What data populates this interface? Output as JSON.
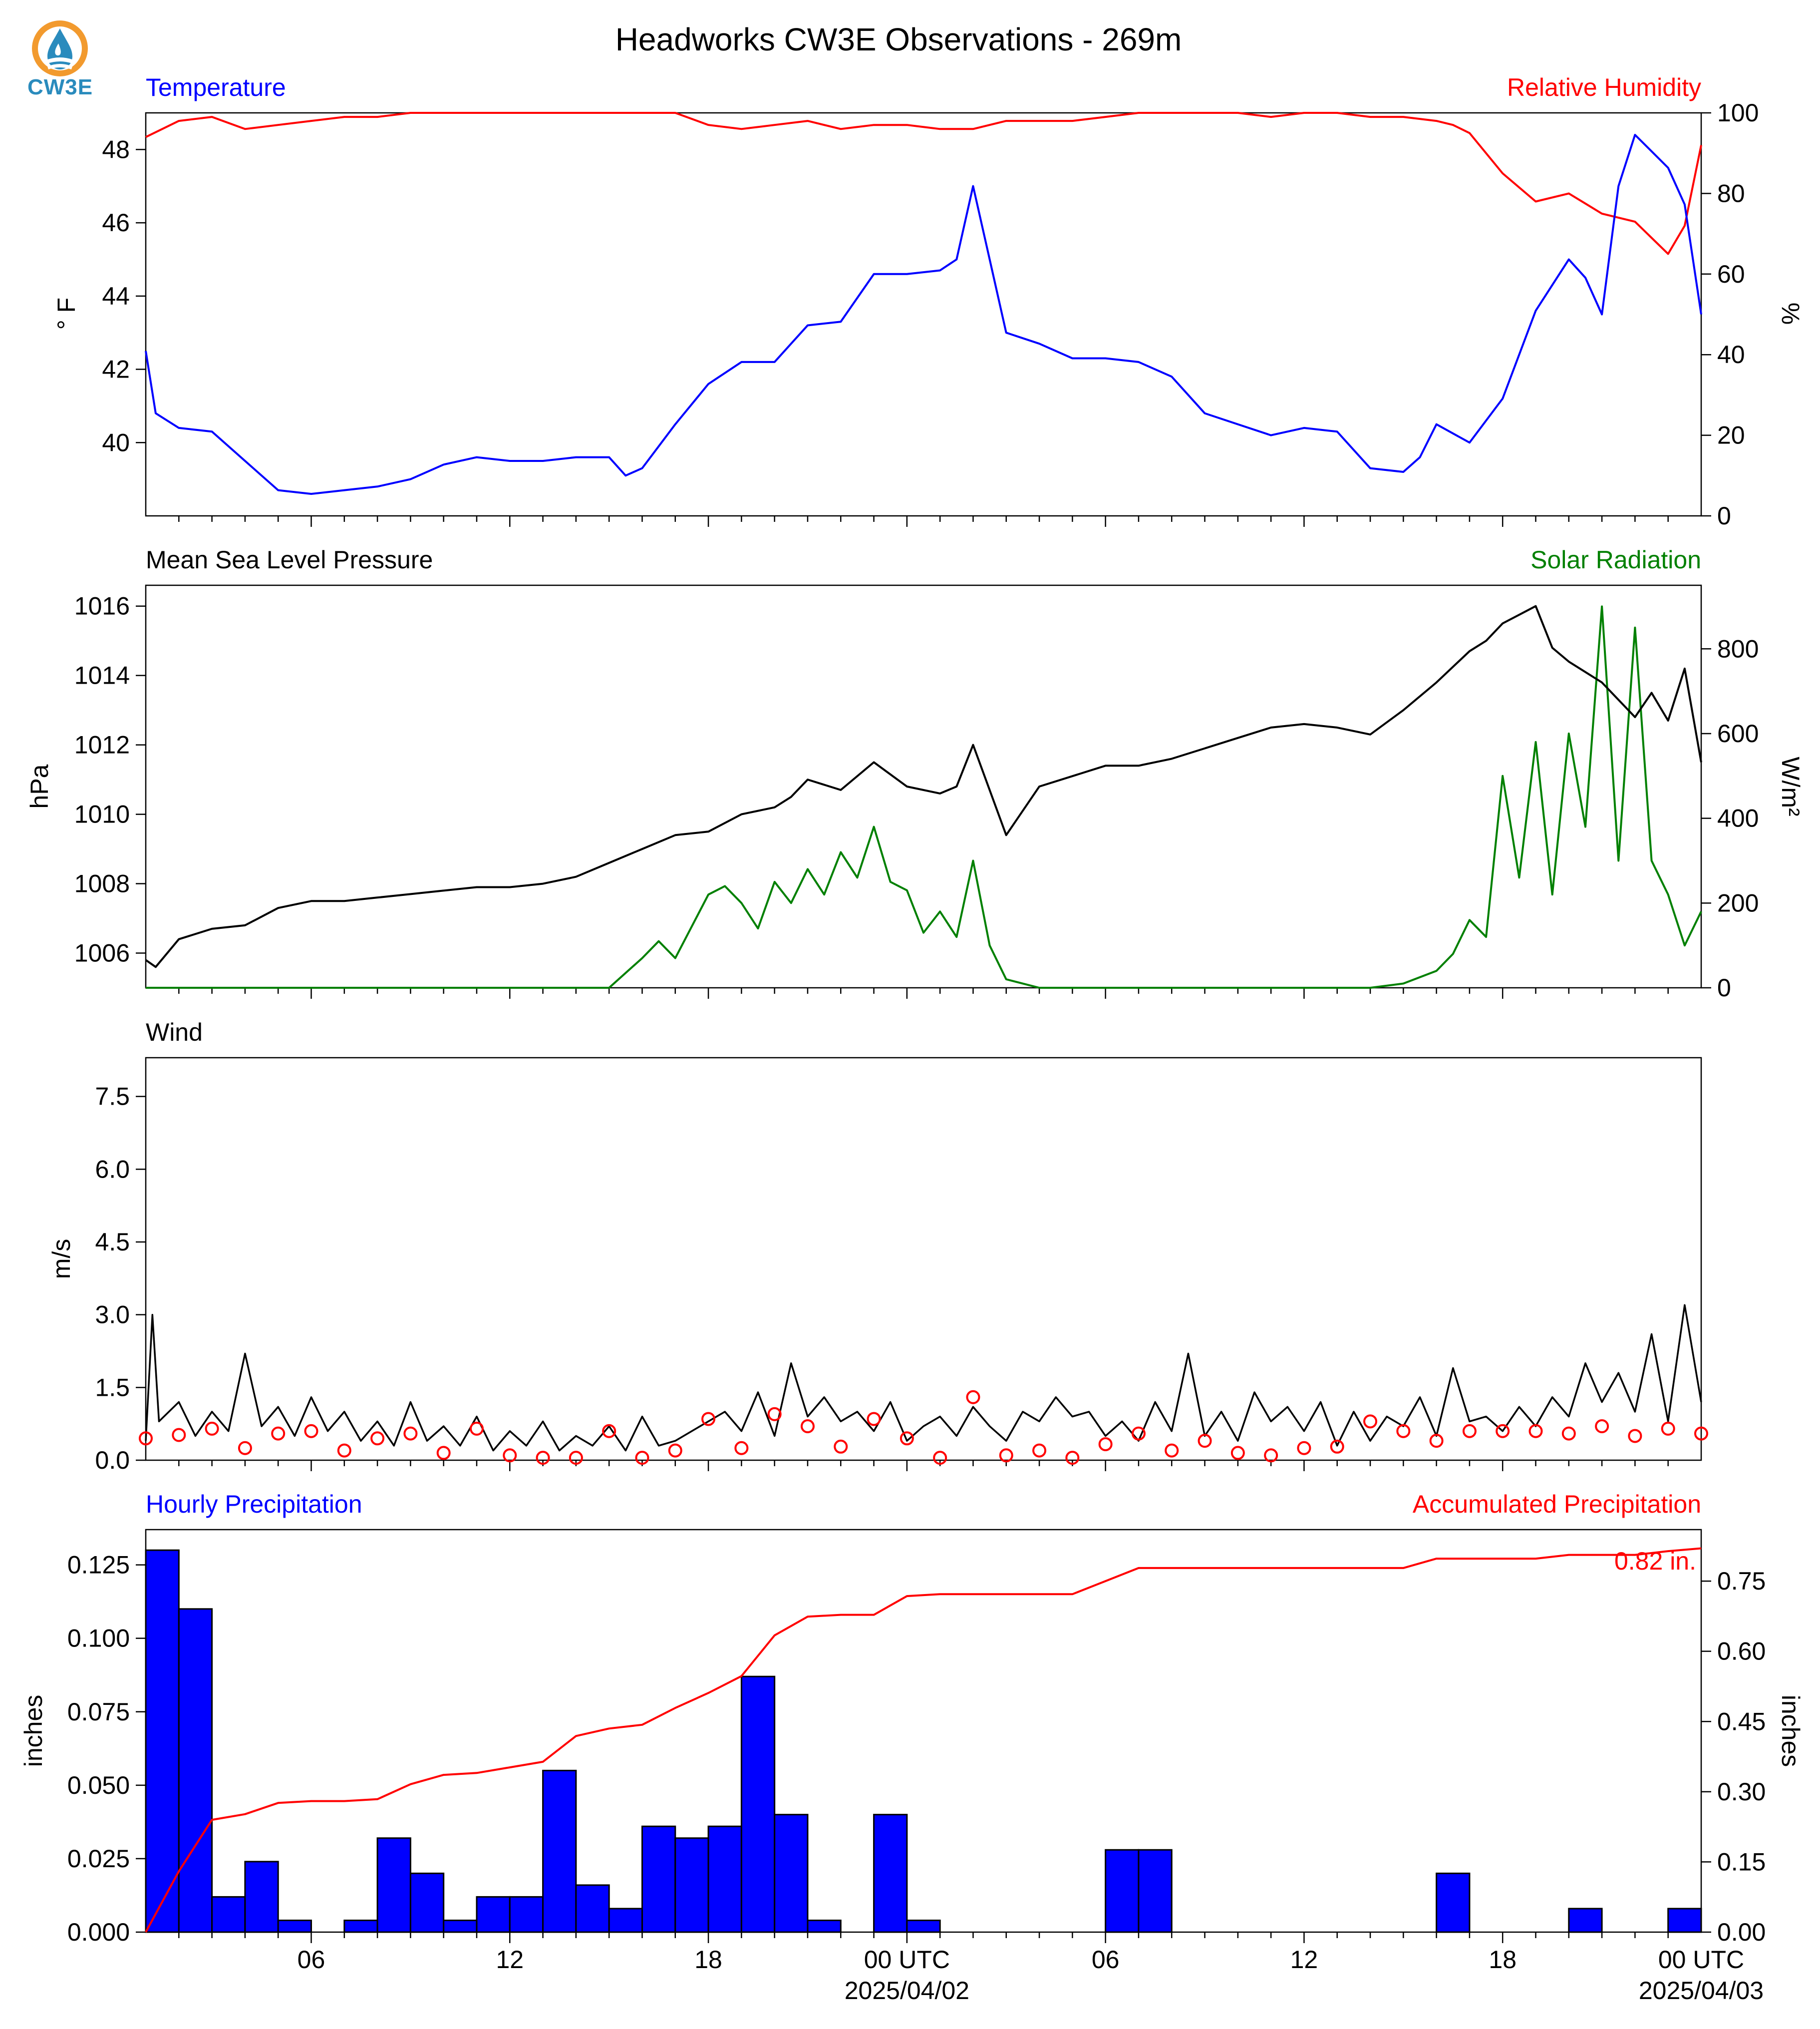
{
  "title": "Headworks CW3E Observations - 269m",
  "logo": {
    "text": "CW3E",
    "colors": {
      "ring": "#f29a2e",
      "drop": "#2a8bbd"
    }
  },
  "colors": {
    "blue": "#0000ff",
    "red": "#ff0000",
    "green": "#008000",
    "black": "#000000"
  },
  "x_axis": {
    "ticks": [
      "06",
      "12",
      "18",
      "00 UTC",
      "06",
      "12",
      "18",
      "00 UTC"
    ],
    "dates": [
      "2025/04/02",
      "2025/04/03"
    ]
  },
  "chart_data": [
    {
      "type": "line",
      "panel": "temperature-humidity",
      "left_label": "Temperature",
      "right_label": "Relative Humidity",
      "ylabel_left": "° F",
      "ylabel_right": "%",
      "ylim_left": [
        38.0,
        49.0
      ],
      "ylim_right": [
        0,
        100
      ],
      "yticks_left": [
        40,
        42,
        44,
        46,
        48
      ],
      "yticks_right": [
        0,
        20,
        40,
        60,
        80,
        100
      ],
      "x_unit": "hours since 00 UTC 2025/04/01",
      "series": [
        {
          "name": "Temperature",
          "color": "#0000ff",
          "axis": "left",
          "x": [
            0,
            0.3,
            1,
            2,
            3,
            4,
            5,
            6,
            7,
            8,
            9,
            10,
            11,
            12,
            13,
            14,
            14.5,
            15,
            16,
            17,
            18,
            19,
            19.5,
            20,
            21,
            22,
            23,
            24,
            24.5,
            25,
            25.5,
            26,
            27,
            28,
            29,
            30,
            31,
            32,
            33,
            34,
            35,
            36,
            37,
            38,
            38.5,
            39,
            40,
            41,
            42,
            43,
            43.5,
            44,
            44.5,
            45,
            46,
            46.5,
            47
          ],
          "y": [
            42.5,
            40.8,
            40.4,
            40.3,
            39.5,
            38.7,
            38.6,
            38.7,
            38.8,
            39.0,
            39.4,
            39.6,
            39.5,
            39.5,
            39.6,
            39.6,
            39.1,
            39.3,
            40.5,
            41.6,
            42.2,
            42.2,
            42.7,
            43.2,
            43.3,
            44.6,
            44.6,
            44.7,
            45.0,
            47.0,
            45.0,
            43.0,
            42.7,
            42.3,
            42.3,
            42.2,
            41.8,
            40.8,
            40.5,
            40.2,
            40.4,
            40.3,
            39.3,
            39.2,
            39.6,
            40.5,
            40.0,
            41.2,
            43.6,
            45.0,
            44.5,
            43.5,
            47.0,
            48.4,
            47.5,
            46.5,
            43.5
          ]
        },
        {
          "name": "Relative Humidity",
          "color": "#ff0000",
          "axis": "right",
          "x": [
            0,
            1,
            2,
            3,
            4,
            5,
            6,
            7,
            8,
            9,
            10,
            11,
            12,
            13,
            14,
            15,
            16,
            17,
            18,
            19,
            20,
            21,
            22,
            23,
            24,
            25,
            26,
            27,
            28,
            29,
            30,
            31,
            32,
            33,
            34,
            35,
            36,
            37,
            38,
            39,
            39.5,
            40,
            41,
            42,
            43,
            44,
            45,
            46,
            46.5,
            47
          ],
          "y": [
            94,
            98,
            99,
            96,
            97,
            98,
            99,
            99,
            100,
            100,
            100,
            100,
            100,
            100,
            100,
            100,
            100,
            97,
            96,
            97,
            98,
            96,
            97,
            97,
            96,
            96,
            98,
            98,
            98,
            99,
            100,
            100,
            100,
            100,
            99,
            100,
            100,
            99,
            99,
            98,
            97,
            95,
            85,
            78,
            80,
            75,
            73,
            65,
            72,
            92
          ]
        }
      ]
    },
    {
      "type": "line",
      "panel": "pressure-solar",
      "left_label": "Mean Sea Level Pressure",
      "right_label": "Solar Radiation",
      "ylabel_left": "hPa",
      "ylabel_right": "W/m²",
      "ylim_left": [
        1005.0,
        1016.6
      ],
      "ylim_right": [
        0,
        950
      ],
      "yticks_left": [
        1006,
        1008,
        1010,
        1012,
        1014,
        1016
      ],
      "yticks_right": [
        0,
        200,
        400,
        600,
        800
      ],
      "x_unit": "hours since 00 UTC 2025/04/01",
      "series": [
        {
          "name": "Mean Sea Level Pressure",
          "color": "#000000",
          "axis": "left",
          "x": [
            0,
            0.3,
            1,
            2,
            3,
            4,
            5,
            6,
            7,
            8,
            9,
            10,
            11,
            12,
            13,
            14,
            15,
            16,
            17,
            18,
            19,
            19.5,
            20,
            21,
            22,
            23,
            24,
            24.5,
            25,
            26,
            27,
            28,
            29,
            30,
            31,
            32,
            33,
            34,
            35,
            36,
            37,
            38,
            39,
            40,
            40.5,
            41,
            42,
            42.5,
            43,
            44,
            45,
            45.5,
            46,
            46.5,
            47
          ],
          "y": [
            1005.8,
            1005.6,
            1006.4,
            1006.7,
            1006.8,
            1007.3,
            1007.5,
            1007.5,
            1007.6,
            1007.7,
            1007.8,
            1007.9,
            1007.9,
            1008.0,
            1008.2,
            1008.6,
            1009.0,
            1009.4,
            1009.5,
            1010.0,
            1010.2,
            1010.5,
            1011.0,
            1010.7,
            1011.5,
            1010.8,
            1010.6,
            1010.8,
            1012.0,
            1009.4,
            1010.8,
            1011.1,
            1011.4,
            1011.4,
            1011.6,
            1011.9,
            1012.2,
            1012.5,
            1012.6,
            1012.5,
            1012.3,
            1013.0,
            1013.8,
            1014.7,
            1015.0,
            1015.5,
            1016.0,
            1014.8,
            1014.4,
            1013.8,
            1012.8,
            1013.5,
            1012.7,
            1014.2,
            1011.5
          ]
        },
        {
          "name": "Solar Radiation",
          "color": "#008000",
          "axis": "right",
          "x": [
            0,
            13,
            14,
            15,
            15.5,
            16,
            17,
            17.5,
            18,
            18.5,
            19,
            19.5,
            20,
            20.5,
            21,
            21.5,
            22,
            22.5,
            23,
            23.5,
            24,
            24.5,
            25,
            25.5,
            26,
            27,
            37,
            38,
            39,
            39.5,
            40,
            40.5,
            41,
            41.5,
            42,
            42.5,
            43,
            43.5,
            44,
            44.5,
            45,
            45.5,
            46,
            46.5,
            47
          ],
          "y": [
            0,
            0,
            0,
            70,
            110,
            70,
            220,
            240,
            200,
            140,
            250,
            200,
            280,
            220,
            320,
            260,
            380,
            250,
            230,
            130,
            180,
            120,
            300,
            100,
            20,
            0,
            0,
            10,
            40,
            80,
            160,
            120,
            500,
            260,
            580,
            220,
            600,
            380,
            900,
            300,
            850,
            300,
            220,
            100,
            180
          ]
        }
      ]
    },
    {
      "type": "line",
      "panel": "wind",
      "left_label": "Wind",
      "ylabel_left": "m/s",
      "ylim_left": [
        0,
        8.3
      ],
      "yticks_left": [
        0.0,
        1.5,
        3.0,
        4.5,
        6.0,
        7.5
      ],
      "x_unit": "hours since 00 UTC 2025/04/01",
      "series": [
        {
          "name": "Wind",
          "color": "#000000",
          "x": [
            0,
            0.2,
            0.4,
            1,
            1.5,
            2,
            2.5,
            3,
            3.5,
            4,
            4.5,
            5,
            5.5,
            6,
            6.5,
            7,
            7.5,
            8,
            8.5,
            9,
            9.5,
            10,
            10.5,
            11,
            11.5,
            12,
            12.5,
            13,
            13.5,
            14,
            14.5,
            15,
            15.5,
            16,
            16.5,
            17,
            17.5,
            18,
            18.5,
            19,
            19.5,
            20,
            20.5,
            21,
            21.5,
            22,
            22.5,
            23,
            23.5,
            24,
            24.5,
            25,
            25.5,
            26,
            26.5,
            27,
            27.5,
            28,
            28.5,
            29,
            29.5,
            30,
            30.5,
            31,
            31.5,
            32,
            32.5,
            33,
            33.5,
            34,
            34.5,
            35,
            35.5,
            36,
            36.5,
            37,
            37.5,
            38,
            38.5,
            39,
            39.5,
            40,
            40.5,
            41,
            41.5,
            42,
            42.5,
            43,
            43.5,
            44,
            44.5,
            45,
            45.5,
            46,
            46.5,
            47
          ],
          "y": [
            0.4,
            3.0,
            0.8,
            1.2,
            0.5,
            1.0,
            0.6,
            2.2,
            0.7,
            1.1,
            0.5,
            1.3,
            0.6,
            1.0,
            0.4,
            0.8,
            0.3,
            1.2,
            0.4,
            0.7,
            0.3,
            0.9,
            0.2,
            0.6,
            0.3,
            0.8,
            0.2,
            0.5,
            0.3,
            0.7,
            0.2,
            0.9,
            0.3,
            0.4,
            0.6,
            0.8,
            1.0,
            0.6,
            1.4,
            0.5,
            2.0,
            0.9,
            1.3,
            0.8,
            1.0,
            0.6,
            1.2,
            0.4,
            0.7,
            0.9,
            0.5,
            1.1,
            0.7,
            0.4,
            1.0,
            0.8,
            1.3,
            0.9,
            1.0,
            0.5,
            0.8,
            0.4,
            1.2,
            0.6,
            2.2,
            0.5,
            1.0,
            0.4,
            1.4,
            0.8,
            1.1,
            0.6,
            1.2,
            0.3,
            1.0,
            0.4,
            0.9,
            0.7,
            1.3,
            0.5,
            1.9,
            0.8,
            0.9,
            0.6,
            1.1,
            0.7,
            1.3,
            0.9,
            2.0,
            1.2,
            1.8,
            1.0,
            2.6,
            0.8,
            3.2,
            1.2
          ]
        }
      ],
      "wind_circles": {
        "x": [
          0,
          1,
          2,
          3,
          4,
          5,
          6,
          7,
          8,
          9,
          10,
          11,
          12,
          13,
          14,
          15,
          16,
          17,
          18,
          19,
          20,
          21,
          22,
          23,
          24,
          25,
          26,
          27,
          28,
          29,
          30,
          31,
          32,
          33,
          34,
          35,
          36,
          37,
          38,
          39,
          40,
          41,
          42,
          43,
          44,
          45,
          46,
          47
        ],
        "y": [
          0.45,
          0.52,
          0.65,
          0.25,
          0.55,
          0.6,
          0.2,
          0.45,
          0.55,
          0.15,
          0.65,
          0.1,
          0.05,
          0.05,
          0.6,
          0.05,
          0.2,
          0.85,
          0.25,
          0.95,
          0.7,
          0.28,
          0.85,
          0.45,
          0.05,
          1.3,
          0.1,
          0.2,
          0.05,
          0.33,
          0.55,
          0.2,
          0.4,
          0.15,
          0.1,
          0.25,
          0.28,
          0.8,
          0.6,
          0.4,
          0.6,
          0.6,
          0.6,
          0.55,
          0.7,
          0.5,
          0.65,
          0.55
        ]
      }
    },
    {
      "type": "bar",
      "panel": "precipitation",
      "left_label": "Hourly Precipitation",
      "right_label": "Accumulated Precipitation",
      "ylabel_left": "inches",
      "ylabel_right": "inches",
      "ylim_left": [
        0,
        0.137
      ],
      "ylim_right": [
        0,
        0.86
      ],
      "yticks_left": [
        0.0,
        0.025,
        0.05,
        0.075,
        0.1,
        0.125
      ],
      "yticks_right": [
        0.0,
        0.15,
        0.3,
        0.45,
        0.6,
        0.75
      ],
      "total_label": "0.82 in.",
      "x_unit": "hours since 00 UTC 2025/04/01",
      "bars": {
        "name": "Hourly Precipitation",
        "color": "#0000ff",
        "x": [
          0,
          1,
          2,
          3,
          4,
          5,
          6,
          7,
          8,
          9,
          10,
          11,
          12,
          13,
          14,
          15,
          16,
          17,
          18,
          19,
          20,
          21,
          22,
          23,
          24,
          25,
          26,
          27,
          28,
          29,
          30,
          31,
          32,
          33,
          34,
          35,
          36,
          37,
          38,
          39,
          40,
          41,
          42,
          43,
          44,
          45,
          46
        ],
        "values": [
          0.13,
          0.11,
          0.012,
          0.024,
          0.004,
          0,
          0.004,
          0.032,
          0.02,
          0.004,
          0.012,
          0.012,
          0.055,
          0.016,
          0.008,
          0.036,
          0.032,
          0.036,
          0.087,
          0.04,
          0.004,
          0,
          0.04,
          0.004,
          0,
          0,
          0,
          0,
          0,
          0.028,
          0.028,
          0,
          0,
          0,
          0,
          0,
          0,
          0,
          0,
          0.02,
          0,
          0,
          0,
          0.008,
          0,
          0,
          0.008
        ]
      },
      "line": {
        "name": "Accumulated Precipitation",
        "color": "#ff0000",
        "x": [
          0,
          1,
          2,
          3,
          4,
          5,
          6,
          7,
          8,
          9,
          10,
          11,
          12,
          13,
          14,
          15,
          16,
          17,
          18,
          19,
          20,
          21,
          22,
          23,
          24,
          25,
          26,
          27,
          28,
          29,
          30,
          31,
          32,
          33,
          34,
          35,
          36,
          37,
          38,
          39,
          40,
          41,
          42,
          43,
          44,
          45,
          46,
          47
        ],
        "y": [
          0,
          0.13,
          0.24,
          0.252,
          0.276,
          0.28,
          0.28,
          0.284,
          0.316,
          0.336,
          0.34,
          0.352,
          0.364,
          0.419,
          0.435,
          0.443,
          0.479,
          0.511,
          0.547,
          0.634,
          0.674,
          0.678,
          0.678,
          0.718,
          0.722,
          0.722,
          0.722,
          0.722,
          0.722,
          0.75,
          0.778,
          0.778,
          0.778,
          0.778,
          0.778,
          0.778,
          0.778,
          0.778,
          0.778,
          0.798,
          0.798,
          0.798,
          0.798,
          0.806,
          0.806,
          0.806,
          0.814,
          0.82
        ]
      }
    }
  ]
}
